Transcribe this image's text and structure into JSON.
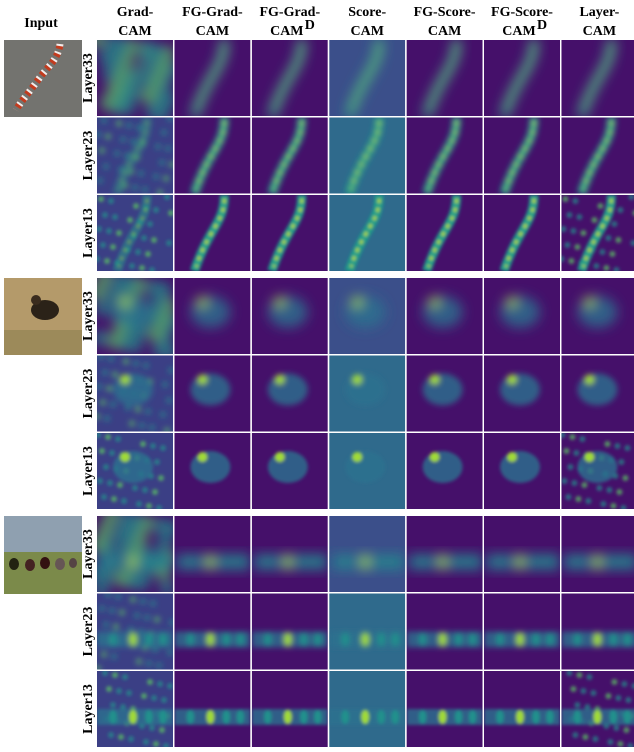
{
  "input_label": "Input",
  "columns": [
    {
      "top": "Grad-",
      "bottom": "CAM"
    },
    {
      "top": "FG-Grad-",
      "bottom": "CAM"
    },
    {
      "top": "FG-Grad-",
      "bottom": "CAM",
      "sup": "D"
    },
    {
      "top": "Score-",
      "bottom": "CAM"
    },
    {
      "top": "FG-Score-",
      "bottom": "CAM"
    },
    {
      "top": "FG-Score-",
      "bottom": "CAM",
      "sup": "D"
    },
    {
      "top": "Layer-",
      "bottom": "CAM"
    }
  ],
  "groups": [
    {
      "layers": [
        "Layer33",
        "Layer23",
        "Layer13"
      ]
    },
    {
      "layers": [
        "Layer33",
        "Layer23",
        "Layer13"
      ]
    },
    {
      "layers": [
        "Layer33",
        "Layer23",
        "Layer13"
      ]
    }
  ]
}
